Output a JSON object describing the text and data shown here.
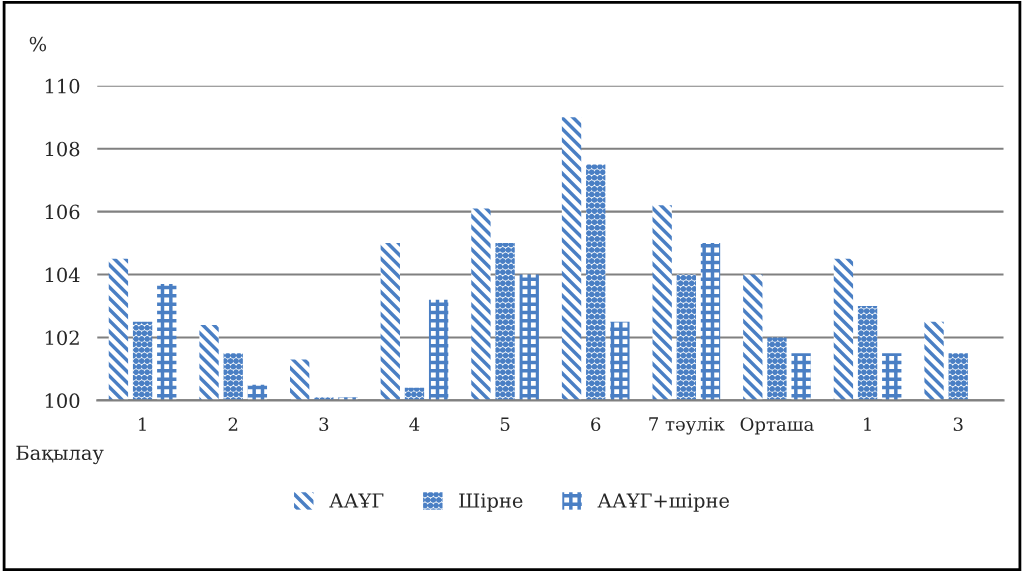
{
  "chart_data": {
    "type": "bar",
    "ylabel": "%",
    "categories": [
      "1",
      "2",
      "3",
      "4",
      "5",
      "6",
      "7 тәулік",
      "Орташа",
      "1",
      "3"
    ],
    "series": [
      {
        "name": "ААҰГ",
        "color": "#4a7fc4",
        "values": [
          104.5,
          102.4,
          101.3,
          105.0,
          106.1,
          109.0,
          106.2,
          104.0,
          104.5,
          102.5
        ]
      },
      {
        "name": "Шірне",
        "color": "#4a7fc4",
        "values": [
          102.5,
          101.5,
          100.1,
          100.4,
          105.0,
          107.5,
          104.0,
          102.0,
          103.0,
          101.5
        ]
      },
      {
        "name": "ААҰГ+шірне",
        "color": "#4a7fc4",
        "values": [
          103.7,
          100.5,
          100.1,
          103.2,
          104.0,
          102.5,
          105.0,
          101.5,
          101.5,
          null
        ]
      }
    ],
    "ylim": [
      100,
      110
    ],
    "yticks": [
      100,
      102,
      104,
      106,
      108,
      110
    ],
    "grid": "y",
    "legend": "bottom",
    "annotations": [
      "Бақылау"
    ]
  }
}
